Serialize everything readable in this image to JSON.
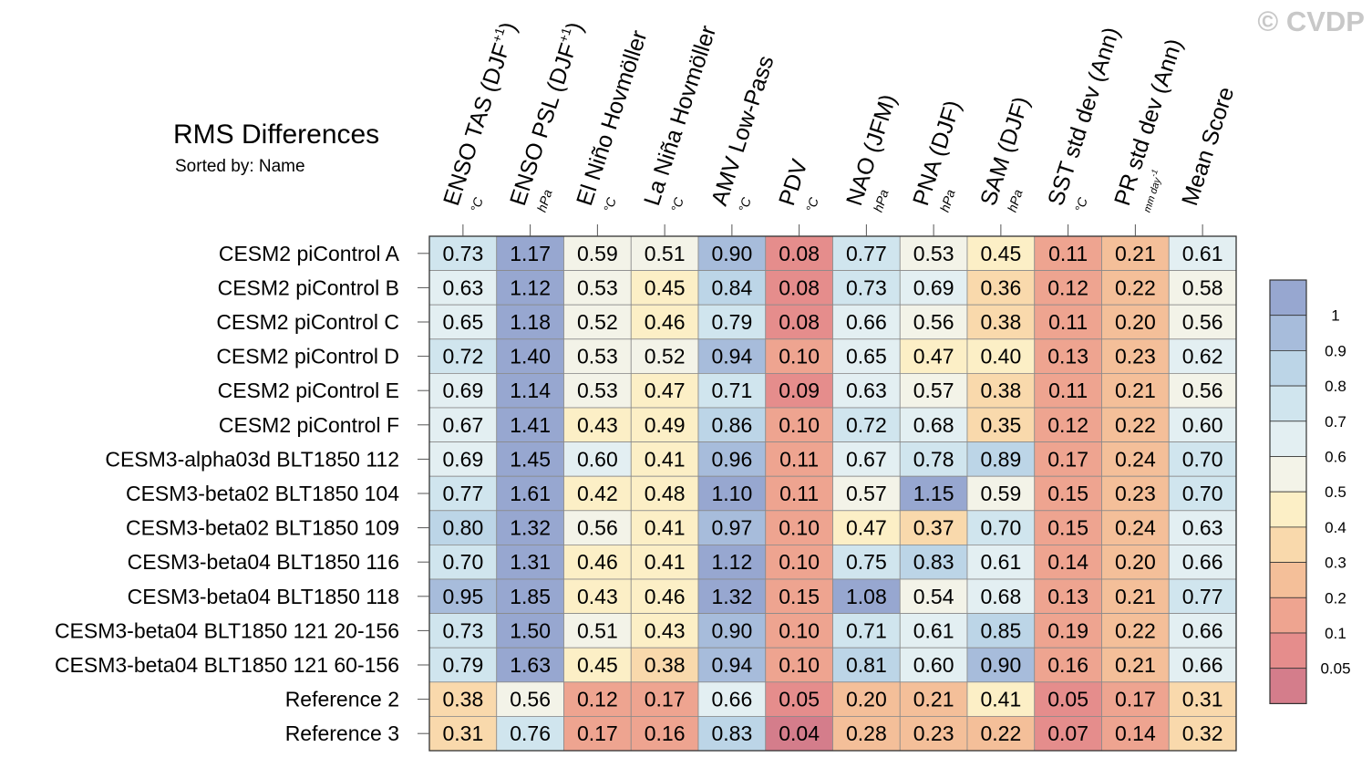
{
  "watermark": "© CVDP",
  "chart_data": {
    "type": "heatmap",
    "title": "RMS Differences",
    "subtitle": "Sorted by: Name",
    "columns": [
      {
        "name": "ENSO TAS (DJF",
        "sup": "+1",
        "close": ")",
        "unit": "°C"
      },
      {
        "name": "ENSO PSL (DJF",
        "sup": "+1",
        "close": ")",
        "unit": "hPa"
      },
      {
        "name": "El Niño Hovmöller",
        "sup": "",
        "close": "",
        "unit": "°C"
      },
      {
        "name": "La Niña Hovmöller",
        "sup": "",
        "close": "",
        "unit": "°C"
      },
      {
        "name": "AMV Low-Pass",
        "sup": "",
        "close": "",
        "unit": "°C"
      },
      {
        "name": "PDV",
        "sup": "",
        "close": "",
        "unit": "°C"
      },
      {
        "name": "NAO (JFM)",
        "sup": "",
        "close": "",
        "unit": "hPa"
      },
      {
        "name": "PNA (DJF)",
        "sup": "",
        "close": "",
        "unit": "hPa"
      },
      {
        "name": "SAM (DJF)",
        "sup": "",
        "close": "",
        "unit": "hPa"
      },
      {
        "name": "SST std dev (Ann)",
        "sup": "",
        "close": "",
        "unit": "°C"
      },
      {
        "name": "PR std dev (Ann)",
        "sup": "",
        "close": "",
        "unit": "mm day-1"
      },
      {
        "name": "Mean Score",
        "sup": "",
        "close": "",
        "unit": ""
      }
    ],
    "rows": [
      {
        "name": "CESM2 piControl A",
        "values": [
          0.73,
          1.17,
          0.59,
          0.51,
          0.9,
          0.08,
          0.77,
          0.53,
          0.45,
          0.11,
          0.21,
          0.61
        ]
      },
      {
        "name": "CESM2 piControl B",
        "values": [
          0.63,
          1.12,
          0.53,
          0.45,
          0.84,
          0.08,
          0.73,
          0.69,
          0.36,
          0.12,
          0.22,
          0.58
        ]
      },
      {
        "name": "CESM2 piControl C",
        "values": [
          0.65,
          1.18,
          0.52,
          0.46,
          0.79,
          0.08,
          0.66,
          0.56,
          0.38,
          0.11,
          0.2,
          0.56
        ]
      },
      {
        "name": "CESM2 piControl D",
        "values": [
          0.72,
          1.4,
          0.53,
          0.52,
          0.94,
          0.1,
          0.65,
          0.47,
          0.4,
          0.13,
          0.23,
          0.62
        ]
      },
      {
        "name": "CESM2 piControl E",
        "values": [
          0.69,
          1.14,
          0.53,
          0.47,
          0.71,
          0.09,
          0.63,
          0.57,
          0.38,
          0.11,
          0.21,
          0.56
        ]
      },
      {
        "name": "CESM2 piControl F",
        "values": [
          0.67,
          1.41,
          0.43,
          0.49,
          0.86,
          0.1,
          0.72,
          0.68,
          0.35,
          0.12,
          0.22,
          0.6
        ]
      },
      {
        "name": "CESM3-alpha03d BLT1850 112",
        "values": [
          0.69,
          1.45,
          0.6,
          0.41,
          0.96,
          0.11,
          0.67,
          0.78,
          0.89,
          0.17,
          0.24,
          0.7
        ]
      },
      {
        "name": "CESM3-beta02 BLT1850 104",
        "values": [
          0.77,
          1.61,
          0.42,
          0.48,
          1.1,
          0.11,
          0.57,
          1.15,
          0.59,
          0.15,
          0.23,
          0.7
        ]
      },
      {
        "name": "CESM3-beta02 BLT1850 109",
        "values": [
          0.8,
          1.32,
          0.56,
          0.41,
          0.97,
          0.1,
          0.47,
          0.37,
          0.7,
          0.15,
          0.24,
          0.63
        ]
      },
      {
        "name": "CESM3-beta04 BLT1850 116",
        "values": [
          0.7,
          1.31,
          0.46,
          0.41,
          1.12,
          0.1,
          0.75,
          0.83,
          0.61,
          0.14,
          0.2,
          0.66
        ]
      },
      {
        "name": "CESM3-beta04 BLT1850 118",
        "values": [
          0.95,
          1.85,
          0.43,
          0.46,
          1.32,
          0.15,
          1.08,
          0.54,
          0.68,
          0.13,
          0.21,
          0.77
        ]
      },
      {
        "name": "CESM3-beta04 BLT1850 121 20-156",
        "values": [
          0.73,
          1.5,
          0.51,
          0.43,
          0.9,
          0.1,
          0.71,
          0.61,
          0.85,
          0.19,
          0.22,
          0.66
        ]
      },
      {
        "name": "CESM3-beta04 BLT1850 121 60-156",
        "values": [
          0.79,
          1.63,
          0.45,
          0.38,
          0.94,
          0.1,
          0.81,
          0.6,
          0.9,
          0.16,
          0.21,
          0.66
        ]
      },
      {
        "name": "Reference 2",
        "values": [
          0.38,
          0.56,
          0.12,
          0.17,
          0.66,
          0.05,
          0.2,
          0.21,
          0.41,
          0.05,
          0.17,
          0.31
        ]
      },
      {
        "name": "Reference 3",
        "values": [
          0.31,
          0.76,
          0.17,
          0.16,
          0.83,
          0.04,
          0.28,
          0.23,
          0.22,
          0.07,
          0.14,
          0.32
        ]
      }
    ],
    "colorbar": {
      "levels": [
        0.05,
        0.1,
        0.2,
        0.3,
        0.4,
        0.5,
        0.6,
        0.7,
        0.8,
        0.9,
        1
      ],
      "labels": [
        "0.05",
        "0.1",
        "0.2",
        "0.3",
        "0.4",
        "0.5",
        "0.6",
        "0.7",
        "0.8",
        "0.9",
        "1"
      ],
      "colors": [
        "#d47d8b",
        "#e58d8c",
        "#eea490",
        "#f4bf99",
        "#f9d9ac",
        "#fcefc6",
        "#f3f3e8",
        "#e3eff2",
        "#d0e5ee",
        "#bcd5e7",
        "#a7bcdb",
        "#97a7d0"
      ]
    }
  }
}
